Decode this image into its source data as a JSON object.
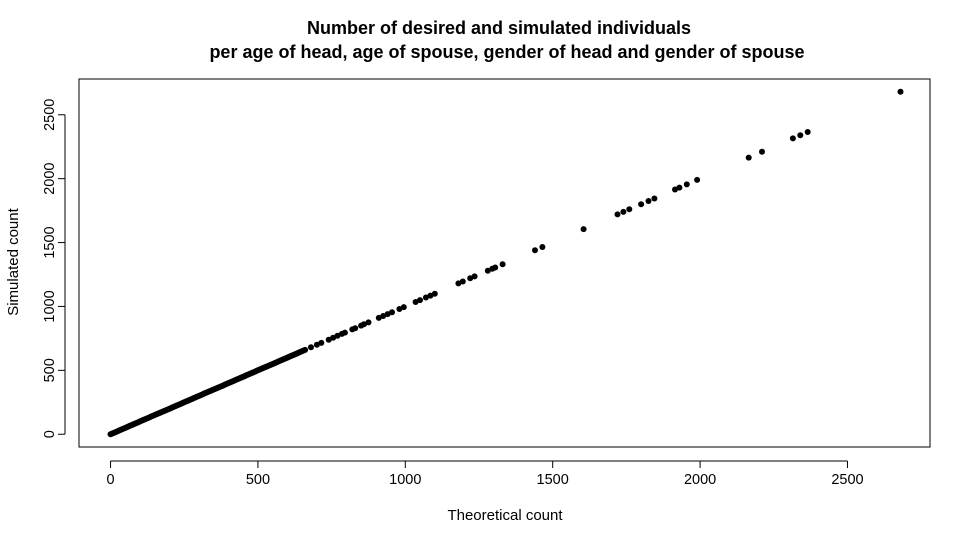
{
  "chart_data": {
    "type": "scatter",
    "title": "Number of desired and simulated individuals",
    "subtitle": "per age of head, age of spouse, gender of head and gender of spouse",
    "xlabel": "Theoretical count",
    "ylabel": "Simulated count",
    "xlim": [
      -107,
      2780
    ],
    "ylim": [
      -100,
      2780
    ],
    "xticks": [
      0,
      500,
      1000,
      1500,
      2000,
      2500
    ],
    "yticks": [
      0,
      500,
      1000,
      1500,
      2000,
      2500
    ],
    "grid": false,
    "legend": "none",
    "point_color": "#000000",
    "dense_segment": {
      "from": 0,
      "to": 660,
      "step": 4
    },
    "points": [
      [
        680,
        680
      ],
      [
        700,
        700
      ],
      [
        715,
        715
      ],
      [
        740,
        740
      ],
      [
        755,
        755
      ],
      [
        770,
        770
      ],
      [
        785,
        785
      ],
      [
        795,
        795
      ],
      [
        820,
        820
      ],
      [
        830,
        830
      ],
      [
        850,
        850
      ],
      [
        860,
        860
      ],
      [
        875,
        875
      ],
      [
        910,
        910
      ],
      [
        925,
        925
      ],
      [
        940,
        940
      ],
      [
        955,
        955
      ],
      [
        980,
        980
      ],
      [
        995,
        995
      ],
      [
        1035,
        1035
      ],
      [
        1050,
        1050
      ],
      [
        1070,
        1070
      ],
      [
        1085,
        1085
      ],
      [
        1100,
        1100
      ],
      [
        1180,
        1180
      ],
      [
        1195,
        1195
      ],
      [
        1220,
        1220
      ],
      [
        1235,
        1235
      ],
      [
        1280,
        1280
      ],
      [
        1295,
        1295
      ],
      [
        1305,
        1305
      ],
      [
        1330,
        1330
      ],
      [
        1440,
        1440
      ],
      [
        1465,
        1465
      ],
      [
        1605,
        1605
      ],
      [
        1720,
        1720
      ],
      [
        1740,
        1740
      ],
      [
        1760,
        1760
      ],
      [
        1800,
        1800
      ],
      [
        1825,
        1825
      ],
      [
        1845,
        1845
      ],
      [
        1915,
        1915
      ],
      [
        1930,
        1930
      ],
      [
        1955,
        1955
      ],
      [
        1990,
        1990
      ],
      [
        2165,
        2165
      ],
      [
        2210,
        2210
      ],
      [
        2315,
        2315
      ],
      [
        2340,
        2340
      ],
      [
        2365,
        2365
      ],
      [
        2680,
        2680
      ]
    ]
  }
}
